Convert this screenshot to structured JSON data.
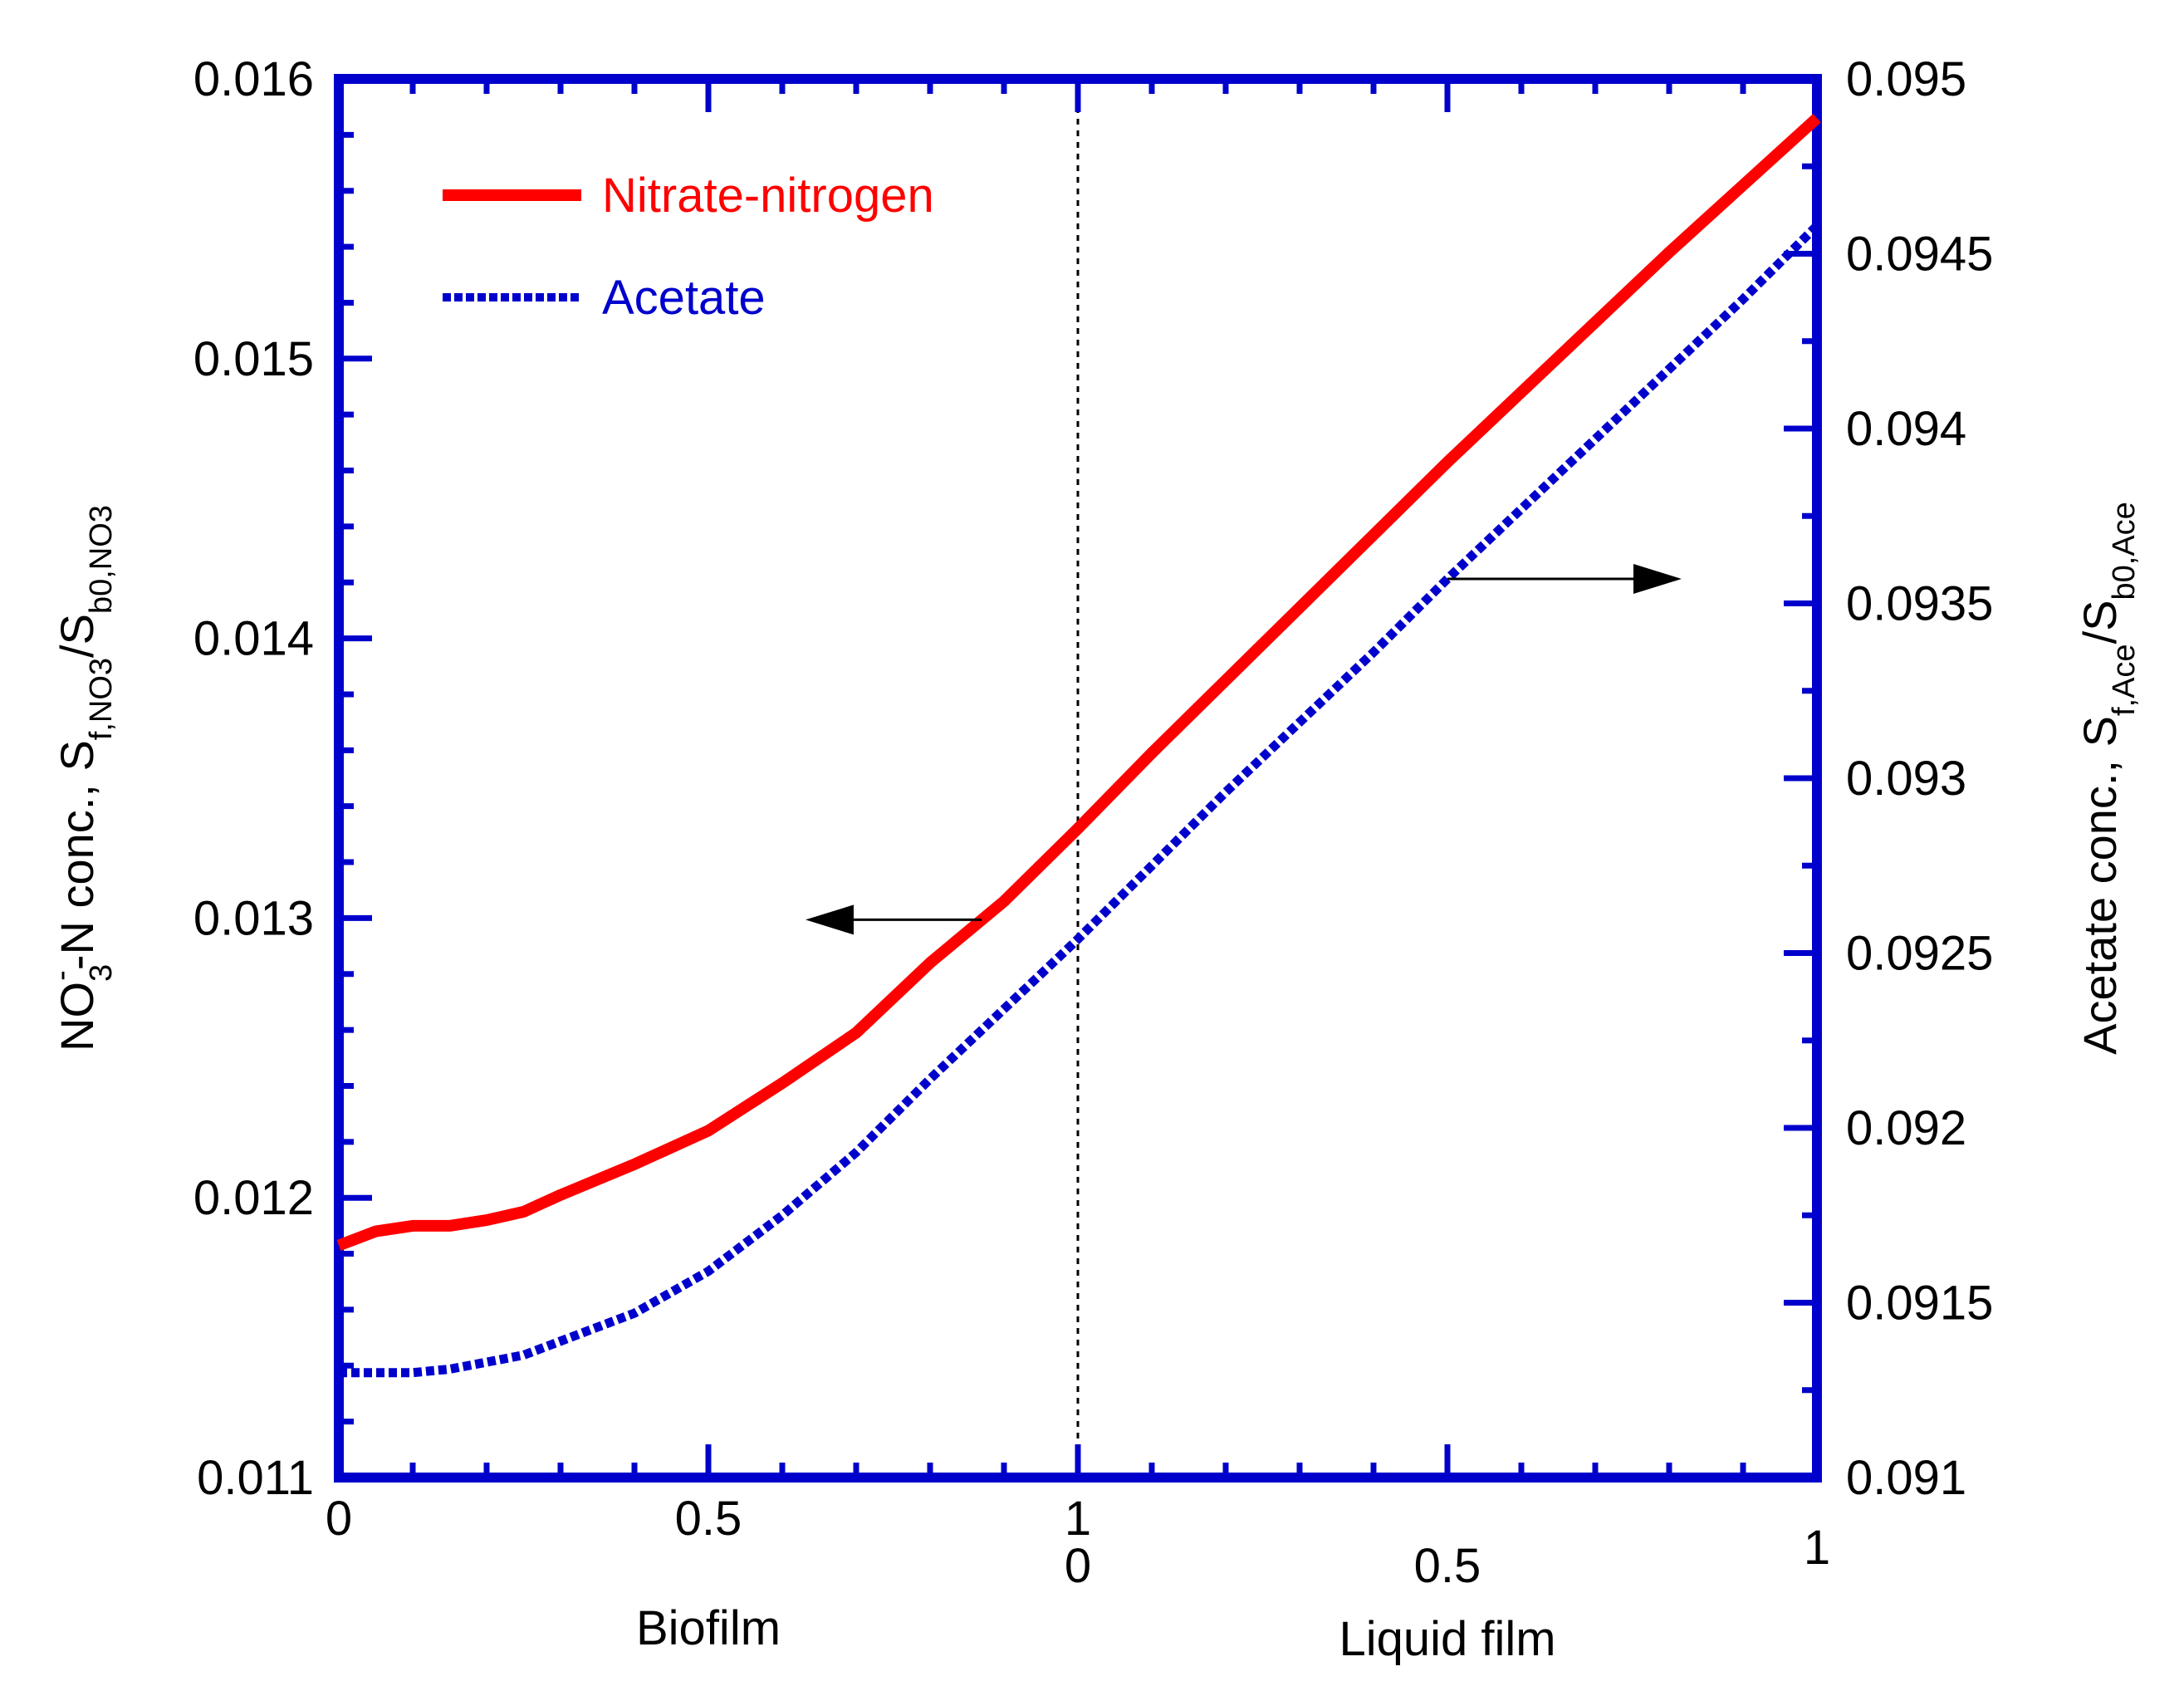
{
  "chart_data": {
    "type": "line",
    "title": "",
    "x_regions": [
      {
        "name": "Biofilm",
        "range": [
          0,
          1
        ],
        "ticks": [
          "0",
          "0.5",
          "1"
        ]
      },
      {
        "name": "Liquid film",
        "range": [
          0,
          1
        ],
        "ticks": [
          "0",
          "0.5",
          "1"
        ]
      }
    ],
    "y_left": {
      "label_parts": {
        "a": "NO",
        "a_sub": "3",
        "a_sup": "-",
        "b": "-N conc., S",
        "b_sub": "f,NO3",
        "c": "/S",
        "c_sub": "b0,NO3"
      },
      "ylim": [
        0.011,
        0.016
      ],
      "ticks": [
        "0.011",
        "0.012",
        "0.013",
        "0.014",
        "0.015",
        "0.016"
      ]
    },
    "y_right": {
      "label_parts": {
        "a": "Acetate conc., S",
        "a_sub": "f,Ace",
        "b": "/S",
        "b_sub": "b0,Ace"
      },
      "ylim": [
        0.091,
        0.095
      ],
      "ticks": [
        "0.091",
        "0.0915",
        "0.092",
        "0.0925",
        "0.093",
        "0.0935",
        "0.094",
        "0.0945",
        "0.095"
      ]
    },
    "series": [
      {
        "name": "Nitrate-nitrogen",
        "axis": "left",
        "color": "#ff0000",
        "style": "solid",
        "x": [
          0,
          0.05,
          0.1,
          0.15,
          0.2,
          0.25,
          0.3,
          0.4,
          0.5,
          0.6,
          0.7,
          0.8,
          0.9,
          1.0,
          1.1,
          1.2,
          1.3,
          1.4,
          1.5,
          1.6,
          1.7,
          1.8,
          1.9,
          2.0
        ],
        "values": [
          0.01183,
          0.01188,
          0.0119,
          0.0119,
          0.01192,
          0.01195,
          0.01201,
          0.01212,
          0.01224,
          0.01241,
          0.01259,
          0.01284,
          0.01306,
          0.01332,
          0.01359,
          0.01385,
          0.01411,
          0.01437,
          0.01463,
          0.01488,
          0.01513,
          0.01538,
          0.01562,
          0.01586
        ]
      },
      {
        "name": "Acetate",
        "axis": "right",
        "color": "#0000cc",
        "style": "dashed",
        "x": [
          0,
          0.05,
          0.1,
          0.15,
          0.2,
          0.25,
          0.3,
          0.4,
          0.5,
          0.6,
          0.7,
          0.8,
          0.9,
          1.0,
          1.1,
          1.2,
          1.3,
          1.4,
          1.5,
          1.6,
          1.7,
          1.8,
          1.9,
          2.0
        ],
        "values": [
          0.0913,
          0.0913,
          0.0913,
          0.09131,
          0.09133,
          0.09135,
          0.09139,
          0.09147,
          0.09159,
          0.09175,
          0.09193,
          0.09214,
          0.09234,
          0.09254,
          0.09275,
          0.09296,
          0.09316,
          0.09336,
          0.09357,
          0.09377,
          0.09397,
          0.09417,
          0.09437,
          0.09458
        ]
      }
    ],
    "divider_x": 1.0,
    "annotations": [
      {
        "type": "arrow",
        "points_to": "left-axis",
        "attached_series": "Nitrate-nitrogen",
        "at_x": 0.87
      },
      {
        "type": "arrow",
        "points_to": "right-axis",
        "attached_series": "Acetate",
        "at_x": 1.5
      }
    ],
    "legend": {
      "position": "top-left"
    },
    "grid": false
  }
}
